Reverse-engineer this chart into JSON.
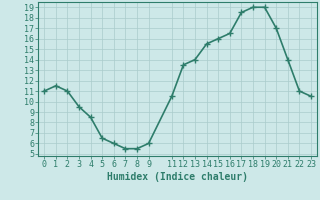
{
  "x": [
    0,
    1,
    2,
    3,
    4,
    5,
    6,
    7,
    8,
    9,
    11,
    12,
    13,
    14,
    15,
    16,
    17,
    18,
    19,
    20,
    21,
    22,
    23
  ],
  "y": [
    11.0,
    11.5,
    11.0,
    9.5,
    8.5,
    6.5,
    6.0,
    5.5,
    5.5,
    6.0,
    10.5,
    13.5,
    14.0,
    15.5,
    16.0,
    16.5,
    18.5,
    19.0,
    19.0,
    17.0,
    14.0,
    11.0,
    10.5
  ],
  "line_color": "#2e7d6b",
  "marker": "+",
  "marker_size": 4,
  "bg_color": "#cde8e8",
  "grid_color": "#aacccc",
  "xlabel": "Humidex (Indice chaleur)",
  "xlim": [
    -0.5,
    23.5
  ],
  "ylim": [
    4.8,
    19.5
  ],
  "yticks": [
    5,
    6,
    7,
    8,
    9,
    10,
    11,
    12,
    13,
    14,
    15,
    16,
    17,
    18,
    19
  ],
  "xticks": [
    0,
    1,
    2,
    3,
    4,
    5,
    6,
    7,
    8,
    9,
    11,
    12,
    13,
    14,
    15,
    16,
    17,
    18,
    19,
    20,
    21,
    22,
    23
  ],
  "tick_color": "#2e7d6b",
  "axis_color": "#2e7d6b",
  "font_color": "#2e7d6b",
  "font_size": 6,
  "xlabel_fontsize": 7,
  "linewidth": 1.2
}
